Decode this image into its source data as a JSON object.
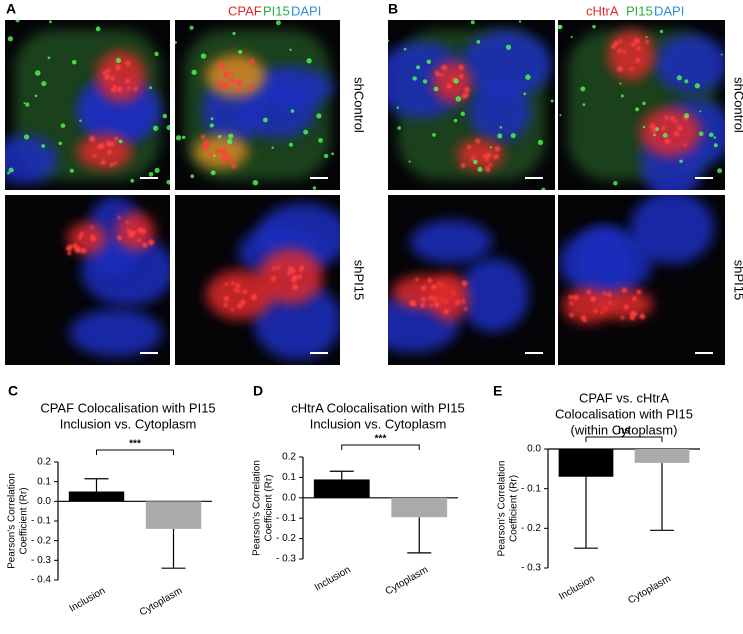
{
  "figure": {
    "panels": [
      {
        "label": "A",
        "legend": [
          {
            "text": "CPAF",
            "color": "#e8242a"
          },
          {
            "text": "PI15",
            "color": "#2ba84a"
          },
          {
            "text": "DAPI",
            "color": "#2b8fd6"
          }
        ],
        "rows": [
          "shControl",
          "shPI15"
        ]
      },
      {
        "label": "B",
        "legend": [
          {
            "text": "cHtrA",
            "color": "#e8242a"
          },
          {
            "text": "PI15",
            "color": "#2ba84a"
          },
          {
            "text": "DAPI",
            "color": "#2b8fd6"
          }
        ],
        "rows": [
          "shControl",
          "shPI15"
        ]
      }
    ]
  },
  "chart_data": [
    {
      "type": "bar",
      "panel": "C",
      "title": [
        "CPAF Colocalisation with PI15",
        "Inclusion vs. Cytoplasm"
      ],
      "ylabel": [
        "Pearson's Correlation",
        "Coefficient (Rr)"
      ],
      "categories": [
        "Inclusion",
        "Cytoplasm"
      ],
      "values": [
        0.05,
        -0.14
      ],
      "errors": [
        0.065,
        0.2
      ],
      "colors": [
        "#000000",
        "#aaaaaa"
      ],
      "ylim": [
        -0.4,
        0.2
      ],
      "yticks": [
        0.2,
        0.1,
        {
          "value": 0,
          "label": "0.0"
        },
        {
          "value": -0.1,
          "label": "- 0.1"
        },
        {
          "value": -0.2,
          "label": "- 0.2"
        },
        {
          "value": -0.3,
          "label": "- 0.3"
        },
        {
          "value": -0.4,
          "label": "- 0.4"
        }
      ],
      "annotation": "***"
    },
    {
      "type": "bar",
      "panel": "D",
      "title": [
        "cHtrA Colocalisation with PI15",
        "Inclusion vs. Cytoplasm"
      ],
      "ylabel": [
        "Pearson's Correlation",
        "Coefficient (Rr)"
      ],
      "categories": [
        "Inclusion",
        "Cytoplasm"
      ],
      "values": [
        0.09,
        -0.095
      ],
      "errors": [
        0.04,
        0.175
      ],
      "colors": [
        "#000000",
        "#aaaaaa"
      ],
      "ylim": [
        -0.3,
        0.2
      ],
      "yticks": [
        0.2,
        0.1,
        {
          "value": 0,
          "label": "0.0"
        },
        {
          "value": -0.1,
          "label": "- 0.1"
        },
        {
          "value": -0.2,
          "label": "- 0.2"
        },
        {
          "value": -0.3,
          "label": "- 0.3"
        }
      ],
      "annotation": "***"
    },
    {
      "type": "bar",
      "panel": "E",
      "title": [
        "CPAF vs. cHtrA",
        "Colocalisation with PI15",
        "(within Cytoplasm)"
      ],
      "ylabel": [
        "Pearson's Correlation",
        "Coefficient (Rr)"
      ],
      "categories": [
        "Inclusion",
        "Cytoplasm"
      ],
      "values": [
        -0.07,
        -0.035
      ],
      "errors": [
        0.18,
        0.17
      ],
      "colors": [
        "#000000",
        "#aaaaaa"
      ],
      "ylim": [
        -0.3,
        0
      ],
      "yticks": [
        {
          "value": 0,
          "label": "0.0"
        },
        {
          "value": -0.1,
          "label": "- 0.1"
        },
        {
          "value": -0.2,
          "label": "- 0.2"
        },
        {
          "value": -0.3,
          "label": "- 0.3"
        }
      ],
      "annotation": "ns"
    }
  ]
}
